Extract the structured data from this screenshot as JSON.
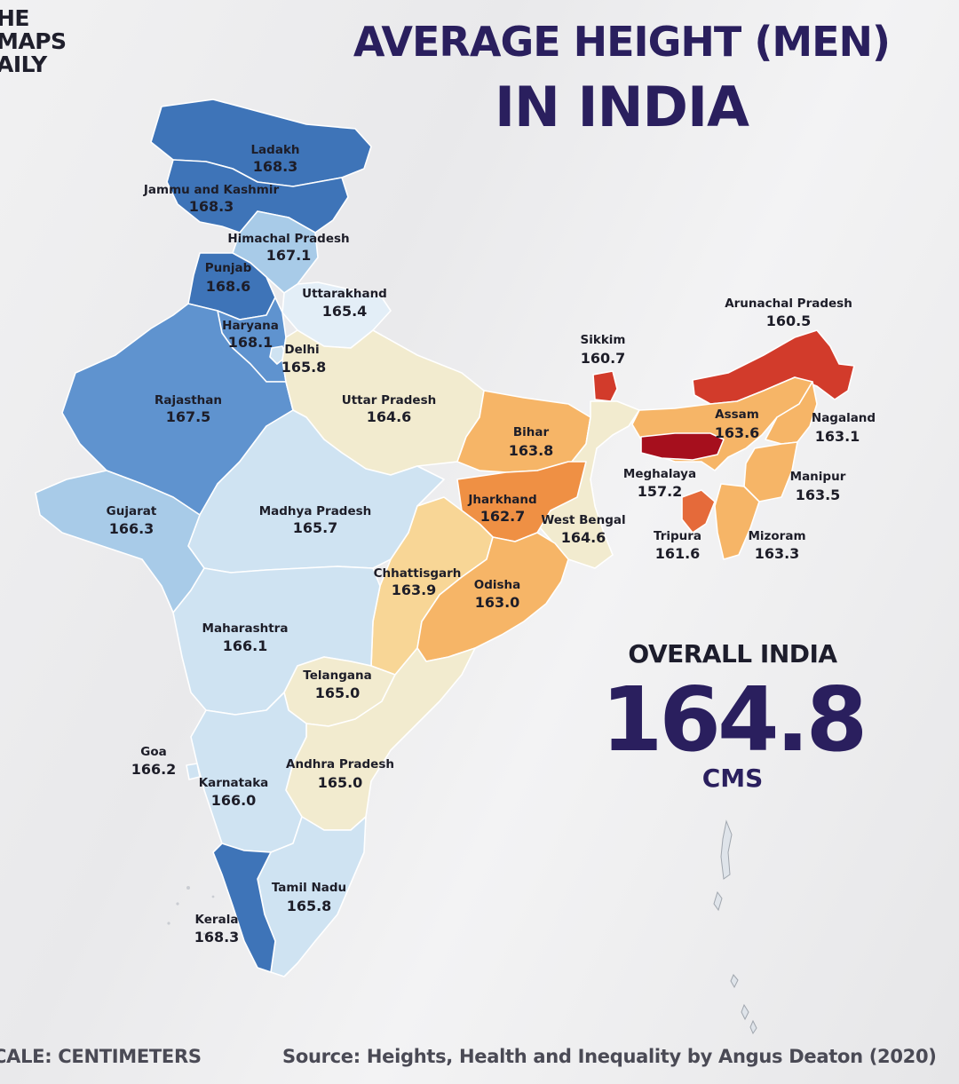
{
  "brand": {
    "line1": "HE",
    "line2": "MAPS",
    "line3": "AILY"
  },
  "title": {
    "line1": "AVERAGE HEIGHT (MEN)",
    "line2": "IN INDIA"
  },
  "overall": {
    "label": "OVERALL INDIA",
    "value": "164.8",
    "unit": "CMS"
  },
  "footer": {
    "scale": "CALE: CENTIMETERS",
    "source": "Source: Heights, Health and Inequality by Angus Deaton (2020)"
  },
  "colors": {
    "deep_blue": "#3e74b8",
    "blue": "#5f93cf",
    "light_blue": "#a8cbe8",
    "pale_blue": "#cfe3f2",
    "very_pale_blue": "#e3eef7",
    "cream": "#f2ebcf",
    "light_orange": "#f8d696",
    "orange": "#f6b567",
    "dark_orange": "#ef9044",
    "red_orange": "#e56a3a",
    "red": "#d23b2b",
    "dark_red": "#a60f1d"
  },
  "regions": [
    {
      "id": "ladakh",
      "name": "Ladakh",
      "value": "168.3"
    },
    {
      "id": "jammu-kashmir",
      "name": "Jammu and Kashmir",
      "value": "168.3"
    },
    {
      "id": "himachal",
      "name": "Himachal Pradesh",
      "value": "167.1"
    },
    {
      "id": "punjab",
      "name": "Punjab",
      "value": "168.6"
    },
    {
      "id": "uttarakhand",
      "name": "Uttarakhand",
      "value": "165.4"
    },
    {
      "id": "haryana",
      "name": "Haryana",
      "value": "168.1"
    },
    {
      "id": "delhi",
      "name": "Delhi",
      "value": "165.8"
    },
    {
      "id": "rajasthan",
      "name": "Rajasthan",
      "value": "167.5"
    },
    {
      "id": "uttar-pradesh",
      "name": "Uttar Pradesh",
      "value": "164.6"
    },
    {
      "id": "bihar",
      "name": "Bihar",
      "value": "163.8"
    },
    {
      "id": "sikkim",
      "name": "Sikkim",
      "value": "160.7"
    },
    {
      "id": "arunachal",
      "name": "Arunachal Pradesh",
      "value": "160.5"
    },
    {
      "id": "assam",
      "name": "Assam",
      "value": "163.6"
    },
    {
      "id": "nagaland",
      "name": "Nagaland",
      "value": "163.1"
    },
    {
      "id": "meghalaya",
      "name": "Meghalaya",
      "value": "157.2"
    },
    {
      "id": "manipur",
      "name": "Manipur",
      "value": "163.5"
    },
    {
      "id": "gujarat",
      "name": "Gujarat",
      "value": "166.3"
    },
    {
      "id": "madhya-pradesh",
      "name": "Madhya Pradesh",
      "value": "165.7"
    },
    {
      "id": "jharkhand",
      "name": "Jharkhand",
      "value": "162.7"
    },
    {
      "id": "west-bengal",
      "name": "West Bengal",
      "value": "164.6"
    },
    {
      "id": "tripura",
      "name": "Tripura",
      "value": "161.6"
    },
    {
      "id": "mizoram",
      "name": "Mizoram",
      "value": "163.3"
    },
    {
      "id": "chhattisgarh",
      "name": "Chhattisgarh",
      "value": "163.9"
    },
    {
      "id": "odisha",
      "name": "Odisha",
      "value": "163.0"
    },
    {
      "id": "maharashtra",
      "name": "Maharashtra",
      "value": "166.1"
    },
    {
      "id": "telangana",
      "name": "Telangana",
      "value": "165.0"
    },
    {
      "id": "goa",
      "name": "Goa",
      "value": "166.2"
    },
    {
      "id": "andhra-pradesh",
      "name": "Andhra Pradesh",
      "value": "165.0"
    },
    {
      "id": "karnataka",
      "name": "Karnataka",
      "value": "166.0"
    },
    {
      "id": "tamil-nadu",
      "name": "Tamil Nadu",
      "value": "165.8"
    },
    {
      "id": "kerala",
      "name": "Kerala",
      "value": "168.3"
    }
  ]
}
